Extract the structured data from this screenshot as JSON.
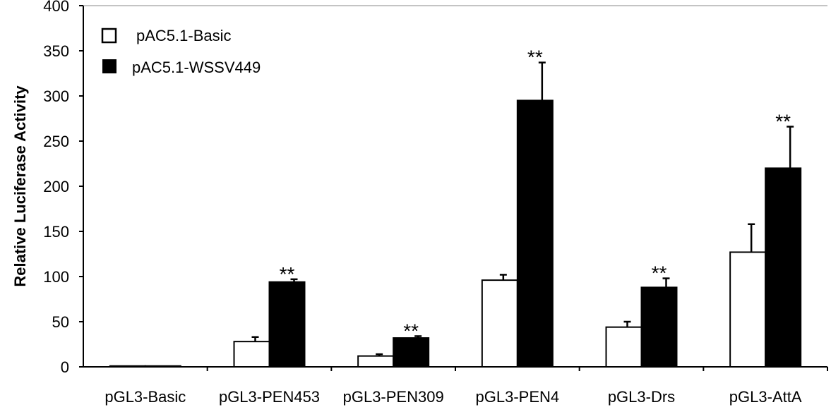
{
  "chart_data": {
    "type": "bar",
    "ylabel": "Relative Luciferase Activity",
    "xlabel": "",
    "ylim": [
      0,
      400
    ],
    "yticks": [
      0,
      50,
      100,
      150,
      200,
      250,
      300,
      350,
      400
    ],
    "categories": [
      "pGL3-Basic",
      "pGL3-PEN453",
      "pGL3-PEN309",
      "pGL3-PEN4",
      "pGL3-Drs",
      "pGL3-AttA"
    ],
    "series": [
      {
        "name": "pAC5.1-Basic",
        "color": "#ffffff",
        "values": [
          1,
          28,
          12,
          96,
          44,
          127
        ],
        "errors": [
          0,
          5,
          2,
          6,
          6,
          31
        ]
      },
      {
        "name": "pAC5.1-WSSV449",
        "color": "#000000",
        "values": [
          1,
          94,
          32,
          295,
          88,
          220
        ],
        "errors": [
          0,
          3,
          2,
          42,
          10,
          46
        ]
      }
    ],
    "annotations": [
      "",
      "**",
      "**",
      "**",
      "**",
      "**"
    ],
    "legend_position": "top-left",
    "grid": false
  }
}
